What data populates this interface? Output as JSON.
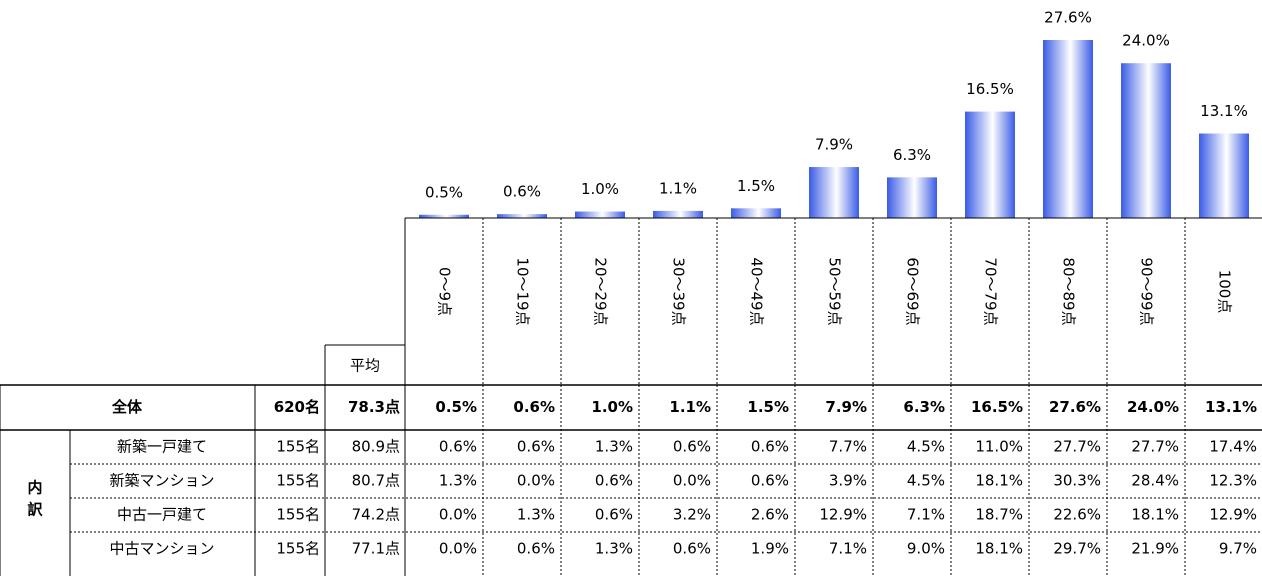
{
  "chart_data": {
    "type": "bar",
    "color": "#3a5be6",
    "categories": [
      "0～9点",
      "10～19点",
      "20～29点",
      "30～39点",
      "40～49点",
      "50～59点",
      "60～69点",
      "70～79点",
      "80～89点",
      "90～99点",
      "100点"
    ],
    "values": [
      0.5,
      0.6,
      1.0,
      1.1,
      1.5,
      7.9,
      6.3,
      16.5,
      27.6,
      24.0,
      13.1
    ],
    "value_labels": [
      "0.5%",
      "0.6%",
      "1.0%",
      "1.1%",
      "1.5%",
      "7.9%",
      "6.3%",
      "16.5%",
      "27.6%",
      "24.0%",
      "13.1%"
    ]
  },
  "table": {
    "avg_header": "平均",
    "total": {
      "label": "全体",
      "n": "620名",
      "avg": "78.3点",
      "cells": [
        "0.5%",
        "0.6%",
        "1.0%",
        "1.1%",
        "1.5%",
        "7.9%",
        "6.3%",
        "16.5%",
        "27.6%",
        "24.0%",
        "13.1%"
      ]
    },
    "group_label": [
      "内",
      "訳"
    ],
    "rows": [
      {
        "label": "新築一戸建て",
        "n": "155名",
        "avg": "80.9点",
        "cells": [
          "0.6%",
          "0.6%",
          "1.3%",
          "0.6%",
          "0.6%",
          "7.7%",
          "4.5%",
          "11.0%",
          "27.7%",
          "27.7%",
          "17.4%"
        ]
      },
      {
        "label": "新築マンション",
        "n": "155名",
        "avg": "80.7点",
        "cells": [
          "1.3%",
          "0.0%",
          "0.6%",
          "0.0%",
          "0.6%",
          "3.9%",
          "4.5%",
          "18.1%",
          "30.3%",
          "28.4%",
          "12.3%"
        ]
      },
      {
        "label": "中古一戸建て",
        "n": "155名",
        "avg": "74.2点",
        "cells": [
          "0.0%",
          "1.3%",
          "0.6%",
          "3.2%",
          "2.6%",
          "12.9%",
          "7.1%",
          "18.7%",
          "22.6%",
          "18.1%",
          "12.9%"
        ]
      },
      {
        "label": "中古マンション",
        "n": "155名",
        "avg": "77.1点",
        "cells": [
          "0.0%",
          "0.6%",
          "1.3%",
          "0.6%",
          "1.9%",
          "7.1%",
          "9.0%",
          "18.1%",
          "29.7%",
          "21.9%",
          "9.7%"
        ]
      }
    ]
  }
}
